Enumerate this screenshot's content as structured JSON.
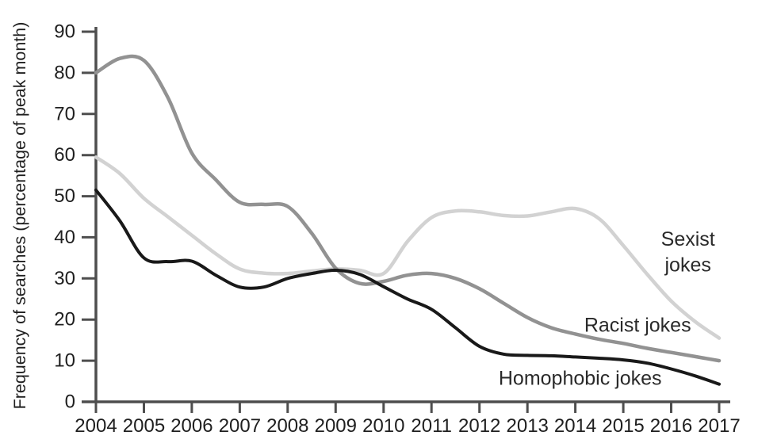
{
  "page": {
    "background": "#ffffff"
  },
  "chart_data": {
    "type": "line",
    "title": "",
    "xlabel": "",
    "ylabel": "Frequency of searches (percentage of peak month)",
    "xlim": [
      2004,
      2017
    ],
    "ylim": [
      0,
      90
    ],
    "grid": false,
    "legend_position": "inline-annotations",
    "x_ticks": [
      2004,
      2005,
      2006,
      2007,
      2008,
      2009,
      2010,
      2011,
      2012,
      2013,
      2014,
      2015,
      2016,
      2017
    ],
    "y_ticks": [
      0,
      10,
      20,
      30,
      40,
      50,
      60,
      70,
      80,
      90
    ],
    "axis_color": "#4e4e4e",
    "x": [
      2004,
      2004.5,
      2005,
      2005.5,
      2006,
      2006.5,
      2007,
      2007.5,
      2008,
      2008.5,
      2009,
      2009.5,
      2010,
      2010.5,
      2011,
      2011.5,
      2012,
      2012.5,
      2013,
      2013.5,
      2014,
      2014.5,
      2015,
      2015.5,
      2016,
      2016.5,
      2017
    ],
    "series": [
      {
        "name": "Sexist jokes",
        "color": "#d2d2d2",
        "stroke_width": 4.5,
        "values": [
          59.5,
          55.5,
          49.5,
          45,
          40.5,
          36,
          32.3,
          31.3,
          31.2,
          31.8,
          32.3,
          32,
          31.2,
          39,
          44.8,
          46.4,
          46.2,
          45.3,
          45.2,
          46.2,
          47,
          44.5,
          38,
          31,
          24.5,
          19.5,
          15.5
        ]
      },
      {
        "name": "Racist jokes",
        "color": "#929292",
        "stroke_width": 4.5,
        "values": [
          80,
          83.5,
          83,
          74,
          60.5,
          54,
          48.5,
          48,
          47.5,
          41,
          32.5,
          28.8,
          29.3,
          30.8,
          31.2,
          30,
          27.5,
          24,
          20.5,
          18,
          16.5,
          15.2,
          14.2,
          13,
          12,
          11,
          10
        ]
      },
      {
        "name": "Homophobic jokes",
        "color": "#191919",
        "stroke_width": 4,
        "values": [
          51.5,
          44,
          35,
          34.1,
          34.2,
          30.8,
          27.9,
          27.9,
          30,
          31.2,
          32,
          31,
          28,
          25,
          22.5,
          18,
          13.5,
          11.6,
          11.3,
          11.2,
          10.9,
          10.6,
          10.2,
          9.4,
          8,
          6.3,
          4.3
        ]
      }
    ],
    "annotations": [
      {
        "series": "Sexist jokes",
        "lines": [
          "Sexist",
          "jokes"
        ],
        "x": 2016.35,
        "y": [
          39.5,
          33.2
        ],
        "anchor": "middle"
      },
      {
        "series": "Racist jokes",
        "lines": [
          "Racist jokes"
        ],
        "x": 2015.3,
        "y": [
          18.6
        ],
        "anchor": "middle"
      },
      {
        "series": "Homophobic jokes",
        "lines": [
          "Homophobic jokes"
        ],
        "x": 2014.1,
        "y": [
          5.7
        ],
        "anchor": "middle"
      }
    ]
  }
}
